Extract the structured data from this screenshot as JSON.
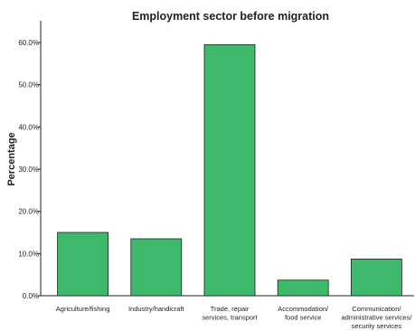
{
  "chart_data": {
    "type": "bar",
    "title": "Employment sector before migration",
    "xlabel": "",
    "ylabel": "Percentage",
    "categories": [
      [
        "Agriculture/fishing"
      ],
      [
        "Industry/handicraft"
      ],
      [
        "Trade, repair",
        "services, transport"
      ],
      [
        "Accommodation/",
        "food service"
      ],
      [
        "Communication/",
        "administrative services/",
        "security services"
      ]
    ],
    "values": [
      15.0,
      13.5,
      59.5,
      3.7,
      8.7
    ],
    "value_unit": "%",
    "ylim": [
      0,
      60
    ],
    "yticks": [
      "0.0%",
      "10.0%",
      "20.0%",
      "30.0%",
      "40.0%",
      "50.0%",
      "60.0%"
    ],
    "grid": false,
    "legend": "none",
    "colors": {
      "bar_fill": "#3eb86a",
      "bar_stroke": "#1f1f1f",
      "axis": "#222222"
    }
  }
}
